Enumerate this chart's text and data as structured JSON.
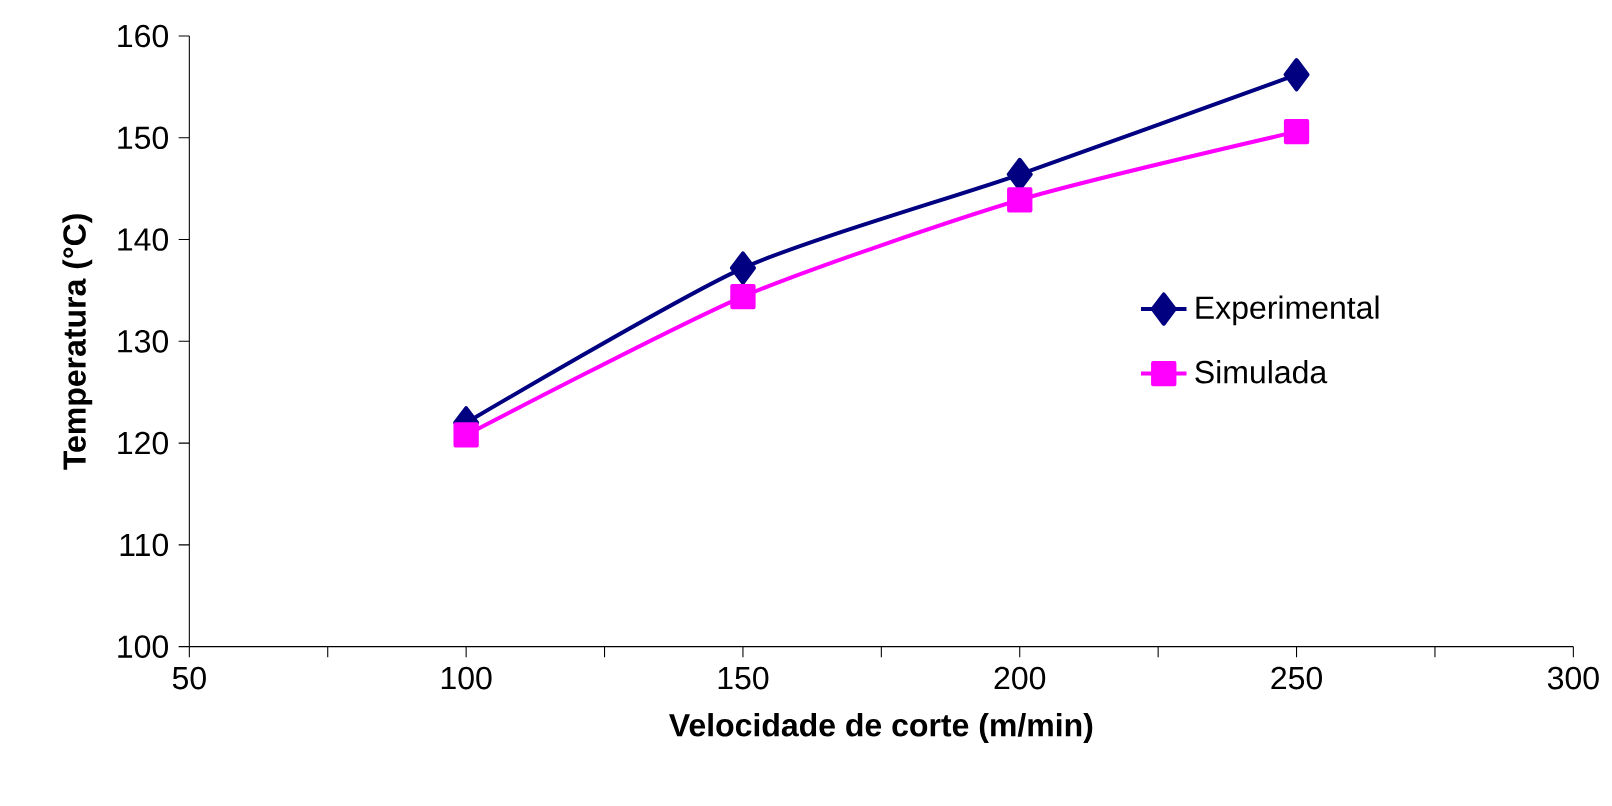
{
  "chart_data": {
    "type": "line",
    "xlabel": "Velocidade de corte (m/min)",
    "ylabel": "Temperatura (°C)",
    "x": [
      100,
      150,
      200,
      250
    ],
    "series": [
      {
        "name": "Experimental",
        "color": "#000080",
        "marker": "diamond",
        "values": [
          122,
          137.2,
          146.4,
          156.2
        ]
      },
      {
        "name": "Simulada",
        "color": "#ff00ff",
        "marker": "square",
        "values": [
          120.8,
          134.4,
          143.9,
          150.6
        ]
      }
    ],
    "xlim": [
      50,
      300
    ],
    "xticks": [
      50,
      {
        "value": 75,
        "label": null
      },
      100,
      {
        "value": 125,
        "label": null
      },
      150,
      {
        "value": 175,
        "label": null
      },
      200,
      {
        "value": 225,
        "label": null
      },
      250,
      {
        "value": 275,
        "label": null
      },
      300
    ],
    "ylim": [
      100,
      160
    ],
    "yticks": [
      100,
      110,
      120,
      130,
      140,
      150,
      160
    ],
    "grid": false,
    "legend": "right",
    "line_style": "solid"
  }
}
